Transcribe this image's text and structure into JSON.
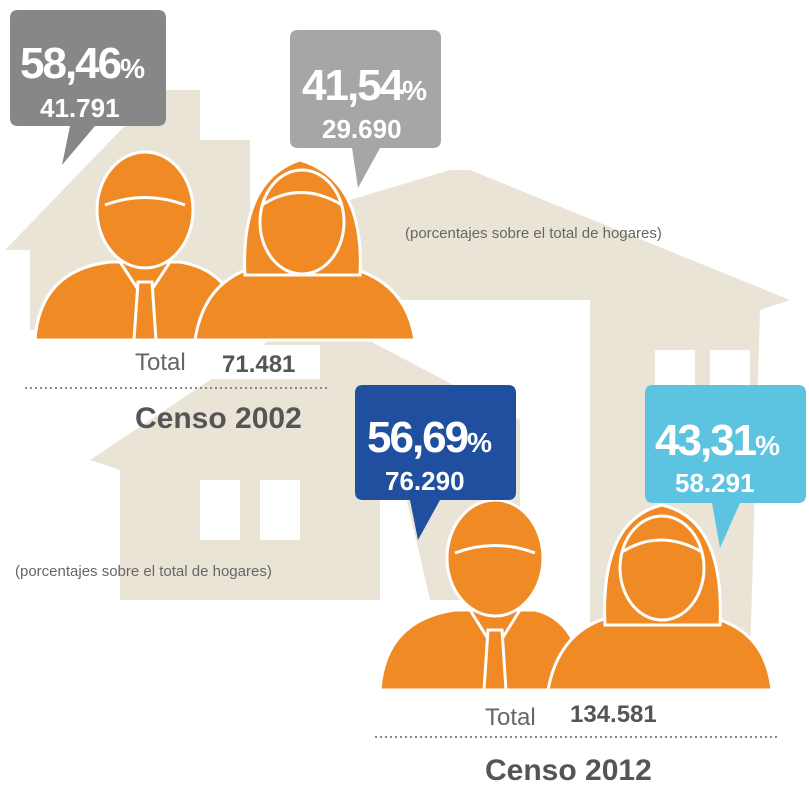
{
  "census": [
    {
      "title": "Censo 2002",
      "total_label": "Total",
      "total": "71.481",
      "note": "(porcentajes sobre el total de hogares)",
      "bubbles": [
        {
          "percent": "58,46",
          "percent_sign": "%",
          "count": "41.791"
        },
        {
          "percent": "41,54",
          "percent_sign": "%",
          "count": "29.690"
        }
      ]
    },
    {
      "title": "Censo 2012",
      "total_label": "Total",
      "total": "134.581",
      "note": "(porcentajes sobre el total de hogares)",
      "bubbles": [
        {
          "percent": "56,69",
          "percent_sign": "%",
          "count": "76.290"
        },
        {
          "percent": "43,31",
          "percent_sign": "%",
          "count": "58.291"
        }
      ]
    }
  ]
}
